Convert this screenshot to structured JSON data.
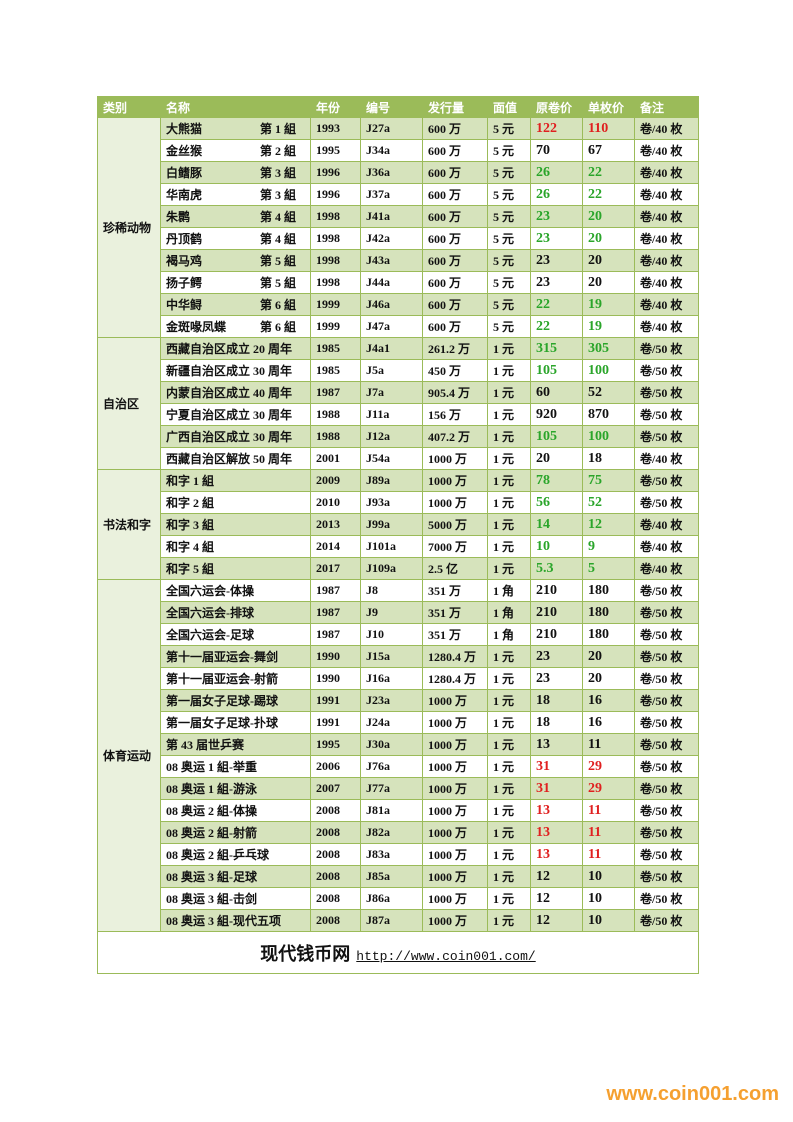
{
  "header": [
    "类别",
    "名称",
    "年份",
    "编号",
    "发行量",
    "面值",
    "原卷价",
    "单枚价",
    "备注"
  ],
  "groups": [
    {
      "category": "珍稀动物",
      "rows": [
        {
          "name": "大熊猫",
          "group": "第 1 組",
          "year": "1993",
          "code": "J27a",
          "issue": "600 万",
          "face": "5 元",
          "roll": "122",
          "single": "110",
          "note": "卷/40 枚",
          "color": "#e02020"
        },
        {
          "name": "金丝猴",
          "group": "第 2 組",
          "year": "1995",
          "code": "J34a",
          "issue": "600 万",
          "face": "5 元",
          "roll": "70",
          "single": "67",
          "note": "卷/40 枚",
          "color": "#111111"
        },
        {
          "name": "白鳍豚",
          "group": "第 3 組",
          "year": "1996",
          "code": "J36a",
          "issue": "600 万",
          "face": "5 元",
          "roll": "26",
          "single": "22",
          "note": "卷/40 枚",
          "color": "#2aa52a"
        },
        {
          "name": "华南虎",
          "group": "第 3 組",
          "year": "1996",
          "code": "J37a",
          "issue": "600 万",
          "face": "5 元",
          "roll": "26",
          "single": "22",
          "note": "卷/40 枚",
          "color": "#2aa52a"
        },
        {
          "name": "朱鹮",
          "group": "第 4 組",
          "year": "1998",
          "code": "J41a",
          "issue": "600 万",
          "face": "5 元",
          "roll": "23",
          "single": "20",
          "note": "卷/40 枚",
          "color": "#2aa52a"
        },
        {
          "name": "丹顶鹤",
          "group": "第 4 組",
          "year": "1998",
          "code": "J42a",
          "issue": "600 万",
          "face": "5 元",
          "roll": "23",
          "single": "20",
          "note": "卷/40 枚",
          "color": "#2aa52a"
        },
        {
          "name": "褐马鸡",
          "group": "第 5 組",
          "year": "1998",
          "code": "J43a",
          "issue": "600 万",
          "face": "5 元",
          "roll": "23",
          "single": "20",
          "note": "卷/40 枚",
          "color": "#111111"
        },
        {
          "name": "扬子鳄",
          "group": "第 5 組",
          "year": "1998",
          "code": "J44a",
          "issue": "600 万",
          "face": "5 元",
          "roll": "23",
          "single": "20",
          "note": "卷/40 枚",
          "color": "#111111"
        },
        {
          "name": "中华鲟",
          "group": "第 6 組",
          "year": "1999",
          "code": "J46a",
          "issue": "600 万",
          "face": "5 元",
          "roll": "22",
          "single": "19",
          "note": "卷/40 枚",
          "color": "#2aa52a"
        },
        {
          "name": "金斑喙凤蝶",
          "group": "第 6 組",
          "year": "1999",
          "code": "J47a",
          "issue": "600 万",
          "face": "5 元",
          "roll": "22",
          "single": "19",
          "note": "卷/40 枚",
          "color": "#2aa52a"
        }
      ]
    },
    {
      "category": "自治区",
      "rows": [
        {
          "name": "西藏自治区成立 20 周年",
          "year": "1985",
          "code": "J4a1",
          "issue": "261.2 万",
          "face": "1 元",
          "roll": "315",
          "single": "305",
          "note": "卷/50 枚",
          "color": "#2aa52a"
        },
        {
          "name": "新疆自治区成立 30 周年",
          "year": "1985",
          "code": "J5a",
          "issue": "450 万",
          "face": "1 元",
          "roll": "105",
          "single": "100",
          "note": "卷/50 枚",
          "color": "#2aa52a"
        },
        {
          "name": "内蒙自治区成立 40 周年",
          "year": "1987",
          "code": "J7a",
          "issue": "905.4 万",
          "face": "1 元",
          "roll": "60",
          "single": "52",
          "note": "卷/50 枚",
          "color": "#111111"
        },
        {
          "name": "宁夏自治区成立 30 周年",
          "year": "1988",
          "code": "J11a",
          "issue": "156 万",
          "face": "1 元",
          "roll": "920",
          "single": "870",
          "note": "卷/50 枚",
          "color": "#111111"
        },
        {
          "name": "广西自治区成立 30 周年",
          "year": "1988",
          "code": "J12a",
          "issue": "407.2 万",
          "face": "1 元",
          "roll": "105",
          "single": "100",
          "note": "卷/50 枚",
          "color": "#2aa52a"
        },
        {
          "name": "西藏自治区解放 50 周年",
          "year": "2001",
          "code": "J54a",
          "issue": "1000 万",
          "face": "1 元",
          "roll": "20",
          "single": "18",
          "note": "卷/40 枚",
          "color": "#111111"
        }
      ]
    },
    {
      "category": "书法和字",
      "rows": [
        {
          "name": "和字 1 組",
          "year": "2009",
          "code": "J89a",
          "issue": "1000 万",
          "face": "1 元",
          "roll": "78",
          "single": "75",
          "note": "卷/50 枚",
          "color": "#2aa52a"
        },
        {
          "name": "和字 2 組",
          "year": "2010",
          "code": "J93a",
          "issue": "1000 万",
          "face": "1 元",
          "roll": "56",
          "single": "52",
          "note": "卷/50 枚",
          "color": "#2aa52a"
        },
        {
          "name": "和字 3 組",
          "year": "2013",
          "code": "J99a",
          "issue": "5000 万",
          "face": "1 元",
          "roll": "14",
          "single": "12",
          "note": "卷/40 枚",
          "color": "#2aa52a"
        },
        {
          "name": "和字 4 組",
          "year": "2014",
          "code": "J101a",
          "issue": "7000 万",
          "face": "1 元",
          "roll": "10",
          "single": "9",
          "note": "卷/40 枚",
          "color": "#2aa52a"
        },
        {
          "name": "和字 5 組",
          "year": "2017",
          "code": "J109a",
          "issue": "2.5 亿",
          "face": "1 元",
          "roll": "5.3",
          "single": "5",
          "note": "卷/40 枚",
          "color": "#2aa52a"
        }
      ]
    },
    {
      "category": "体育运动",
      "rows": [
        {
          "name": "全国六运会-体操",
          "year": "1987",
          "code": "J8",
          "issue": "351 万",
          "face": "1 角",
          "roll": "210",
          "single": "180",
          "note": "卷/50 枚",
          "color": "#111111"
        },
        {
          "name": "全国六运会-排球",
          "year": "1987",
          "code": "J9",
          "issue": "351 万",
          "face": "1 角",
          "roll": "210",
          "single": "180",
          "note": "卷/50 枚",
          "color": "#111111"
        },
        {
          "name": "全国六运会-足球",
          "year": "1987",
          "code": "J10",
          "issue": "351 万",
          "face": "1 角",
          "roll": "210",
          "single": "180",
          "note": "卷/50 枚",
          "color": "#111111"
        },
        {
          "name": "第十一届亚运会-舞剑",
          "year": "1990",
          "code": "J15a",
          "issue": "1280.4 万",
          "face": "1 元",
          "roll": "23",
          "single": "20",
          "note": "卷/50 枚",
          "color": "#111111"
        },
        {
          "name": "第十一届亚运会-射箭",
          "year": "1990",
          "code": "J16a",
          "issue": "1280.4 万",
          "face": "1 元",
          "roll": "23",
          "single": "20",
          "note": "卷/50 枚",
          "color": "#111111"
        },
        {
          "name": "第一届女子足球-踢球",
          "year": "1991",
          "code": "J23a",
          "issue": "1000 万",
          "face": "1 元",
          "roll": "18",
          "single": "16",
          "note": "卷/50 枚",
          "color": "#111111"
        },
        {
          "name": "第一届女子足球-扑球",
          "year": "1991",
          "code": "J24a",
          "issue": "1000 万",
          "face": "1 元",
          "roll": "18",
          "single": "16",
          "note": "卷/50 枚",
          "color": "#111111"
        },
        {
          "name": "第 43 届世乒赛",
          "year": "1995",
          "code": "J30a",
          "issue": "1000 万",
          "face": "1 元",
          "roll": "13",
          "single": "11",
          "note": "卷/50 枚",
          "color": "#111111"
        },
        {
          "name": "08 奥运 1 組-举重",
          "year": "2006",
          "code": "J76a",
          "issue": "1000 万",
          "face": "1 元",
          "roll": "31",
          "single": "29",
          "note": "卷/50 枚",
          "color": "#e02020"
        },
        {
          "name": "08 奥运 1 組-游泳",
          "year": "2007",
          "code": "J77a",
          "issue": "1000 万",
          "face": "1 元",
          "roll": "31",
          "single": "29",
          "note": "卷/50 枚",
          "color": "#e02020"
        },
        {
          "name": "08 奥运 2 組-体操",
          "year": "2008",
          "code": "J81a",
          "issue": "1000 万",
          "face": "1 元",
          "roll": "13",
          "single": "11",
          "note": "卷/50 枚",
          "color": "#e02020"
        },
        {
          "name": "08 奥运 2 組-射箭",
          "year": "2008",
          "code": "J82a",
          "issue": "1000 万",
          "face": "1 元",
          "roll": "13",
          "single": "11",
          "note": "卷/50 枚",
          "color": "#e02020"
        },
        {
          "name": "08 奥运 2 組-乒乓球",
          "year": "2008",
          "code": "J83a",
          "issue": "1000 万",
          "face": "1 元",
          "roll": "13",
          "single": "11",
          "note": "卷/50 枚",
          "color": "#e02020"
        },
        {
          "name": "08 奥运 3 組-足球",
          "year": "2008",
          "code": "J85a",
          "issue": "1000 万",
          "face": "1 元",
          "roll": "12",
          "single": "10",
          "note": "卷/50 枚",
          "color": "#111111"
        },
        {
          "name": "08 奥运 3 組-击剑",
          "year": "2008",
          "code": "J86a",
          "issue": "1000 万",
          "face": "1 元",
          "roll": "12",
          "single": "10",
          "note": "卷/50 枚",
          "color": "#111111"
        },
        {
          "name": "08 奥运 3 組-现代五项",
          "year": "2008",
          "code": "J87a",
          "issue": "1000 万",
          "face": "1 元",
          "roll": "12",
          "single": "10",
          "note": "卷/50 枚",
          "color": "#111111"
        }
      ]
    }
  ],
  "footer": {
    "site": "现代钱币网",
    "url": "http://www.coin001.com/"
  },
  "watermark": "www.coin001.com"
}
